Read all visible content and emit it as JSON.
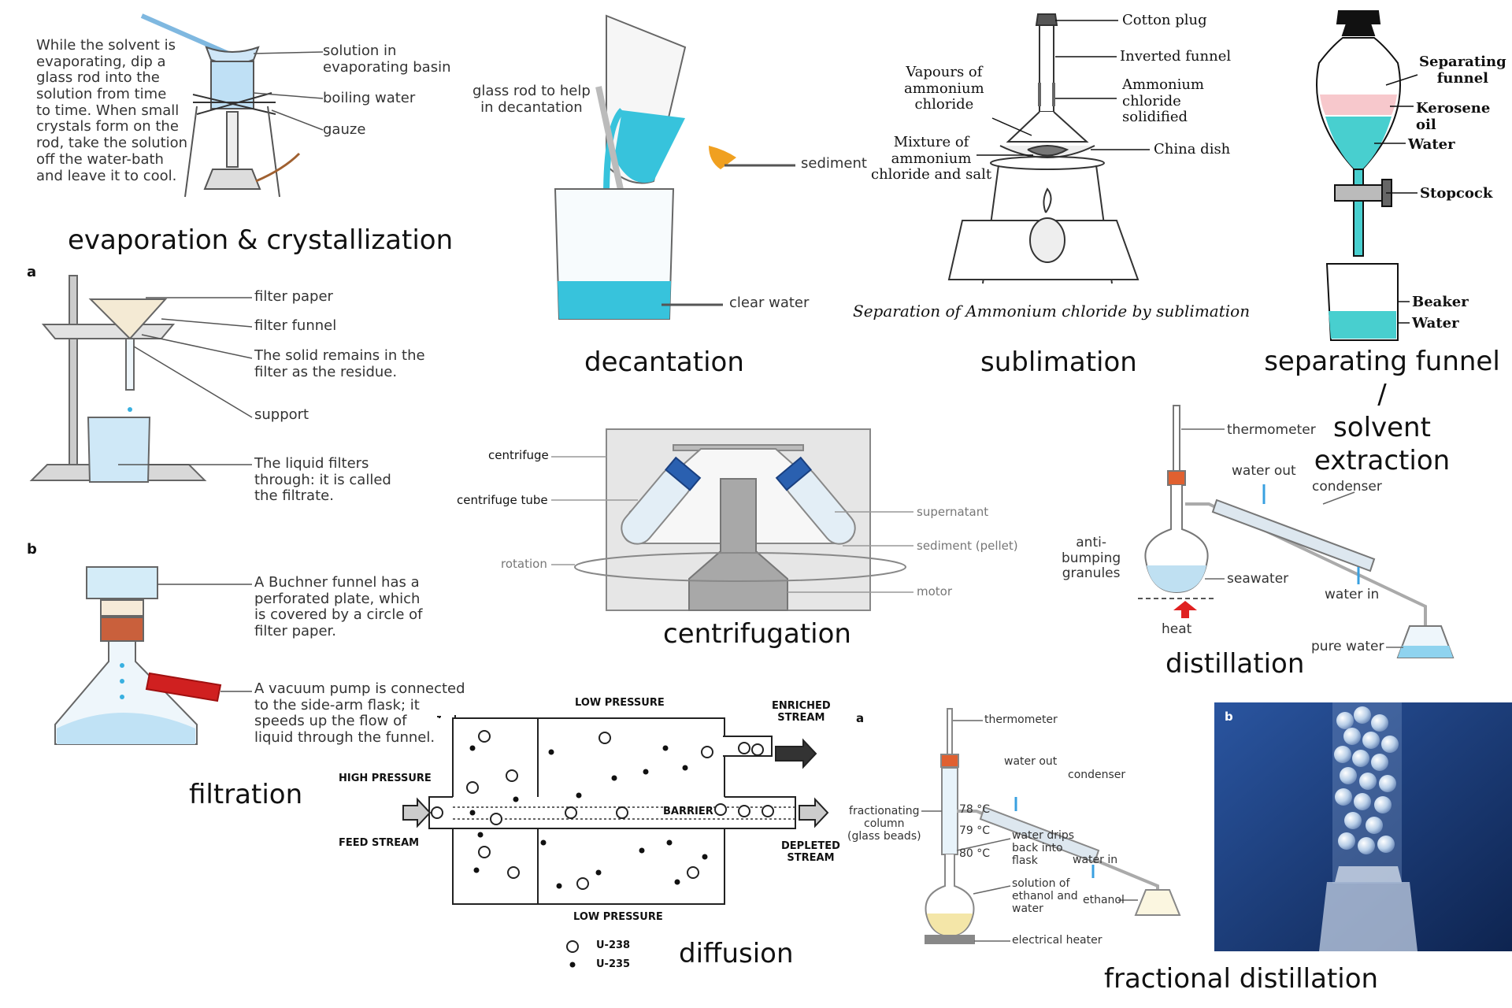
{
  "captions": {
    "evaporation": "evaporation & crystallization",
    "decantation": "decantation",
    "sublimation": "sublimation",
    "separating": "separating funnel /\nsolvent extraction",
    "filtration": "filtration",
    "centrifugation": "centrifugation",
    "distillation": "distillation",
    "diffusion": "diffusion",
    "fractional": "fractional distillation"
  },
  "evaporation": {
    "note": "While the solvent is\nevaporating, dip a\nglass rod into the\nsolution from time\nto time. When small\ncrystals form on the\nrod, take the solution\noff the water-bath\nand leave it to cool.",
    "basin": "solution in\nevaporating basin",
    "water": "boiling water",
    "gauze": "gauze"
  },
  "filtration": {
    "label_a": "a",
    "label_b": "b",
    "paper": "filter paper",
    "funnel": "filter funnel",
    "residue": "The solid remains in the\nfilter as the residue.",
    "support": "support",
    "filtrate": "The liquid filters\nthrough: it is called\nthe filtrate.",
    "buchner": "A Buchner funnel has a\nperforated plate, which\nis covered by a circle of\nfilter paper.",
    "vacuum": "A vacuum pump is connected\nto the side-arm flask; it\nspeeds up the flow of\nliquid through the funnel."
  },
  "decantation": {
    "rod": "glass rod to help\nin decantation",
    "sediment": "sediment",
    "clear": "clear water"
  },
  "sublimation": {
    "cotton": "Cotton plug",
    "funnel": "Inverted funnel",
    "vapours": "Vapours of\nammonium\nchloride",
    "solidified": "Ammonium\nchloride\nsolidified",
    "mixture": "Mixture of\nammonium\nchloride and salt",
    "dish": "China dish",
    "title": "Separation of Ammonium chloride by sublimation"
  },
  "separating": {
    "funnel": "Separating\nfunnel",
    "kerosene": "Kerosene oil",
    "water1": "Water",
    "stopcock": "Stopcock",
    "beaker": "Beaker",
    "water2": "Water"
  },
  "centrifugation": {
    "centrifuge": "centrifuge",
    "tube": "centrifuge tube",
    "rotation": "rotation",
    "supernatant": "supernatant",
    "sediment": "sediment (pellet)",
    "motor": "motor"
  },
  "distillation": {
    "thermometer": "thermometer",
    "water_out": "water out",
    "condenser": "condenser",
    "anti": "anti-\nbumping\ngranules",
    "seawater": "seawater",
    "water_in": "water in",
    "heat": "heat",
    "pure": "pure water"
  },
  "diffusion": {
    "low_top": "LOW PRESSURE",
    "enriched": "ENRICHED\nSTREAM",
    "high": "HIGH PRESSURE",
    "feed": "FEED STREAM",
    "barrier": "BARRIER",
    "depleted": "DEPLETED\nSTREAM",
    "low_bottom": "LOW PRESSURE",
    "u238": "U-238",
    "u235": "U-235"
  },
  "fractional": {
    "label_a": "a",
    "label_b": "b",
    "thermometer": "thermometer",
    "water_out": "water out",
    "condenser": "condenser",
    "column": "fractionating\ncolumn\n(glass beads)",
    "t78": "78 °C",
    "t79": "79 °C",
    "t80": "80 °C",
    "drips": "water drips\nback into\nflask",
    "water_in": "water in",
    "solution": "solution of\nethanol and\nwater",
    "ethanol": "ethanol",
    "heater": "electrical heater"
  },
  "colors": {
    "cyan": "#37c3dc",
    "teal": "#48cfcf",
    "pink": "#f7c8cc",
    "orange": "#f0a020",
    "gray": "#d8d8d8",
    "blue_photo": "#1e3e7a"
  }
}
